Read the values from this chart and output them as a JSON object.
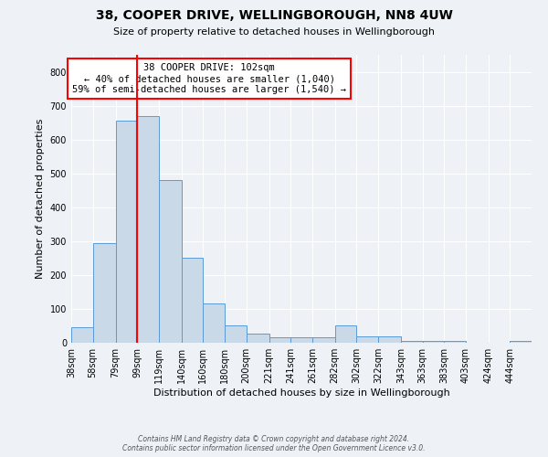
{
  "title": "38, COOPER DRIVE, WELLINGBOROUGH, NN8 4UW",
  "subtitle": "Size of property relative to detached houses in Wellingborough",
  "xlabel": "Distribution of detached houses by size in Wellingborough",
  "ylabel": "Number of detached properties",
  "bin_labels": [
    "38sqm",
    "58sqm",
    "79sqm",
    "99sqm",
    "119sqm",
    "140sqm",
    "160sqm",
    "180sqm",
    "200sqm",
    "221sqm",
    "241sqm",
    "261sqm",
    "282sqm",
    "302sqm",
    "322sqm",
    "343sqm",
    "363sqm",
    "383sqm",
    "403sqm",
    "424sqm",
    "444sqm"
  ],
  "bar_heights": [
    45,
    295,
    655,
    670,
    480,
    250,
    115,
    50,
    28,
    15,
    15,
    15,
    50,
    20,
    20,
    5,
    5,
    5,
    0,
    0,
    5
  ],
  "bar_color": "#c9d9e8",
  "bar_edge_color": "#5b9bd5",
  "vline_x_index": 3,
  "vline_color": "red",
  "ylim": [
    0,
    850
  ],
  "yticks": [
    0,
    100,
    200,
    300,
    400,
    500,
    600,
    700,
    800
  ],
  "annotation_title": "38 COOPER DRIVE: 102sqm",
  "annotation_line1": "← 40% of detached houses are smaller (1,040)",
  "annotation_line2": "59% of semi-detached houses are larger (1,540) →",
  "annotation_box_color": "#ffffff",
  "annotation_box_edge": "red",
  "footer1": "Contains HM Land Registry data © Crown copyright and database right 2024.",
  "footer2": "Contains public sector information licensed under the Open Government Licence v3.0.",
  "bin_edges": [
    38,
    58,
    79,
    99,
    119,
    140,
    160,
    180,
    200,
    221,
    241,
    261,
    282,
    302,
    322,
    343,
    363,
    383,
    403,
    424,
    444,
    464
  ],
  "background_color": "#eef2f7",
  "grid_color": "#ffffff",
  "title_fontsize": 10,
  "subtitle_fontsize": 8,
  "axis_label_fontsize": 8,
  "tick_fontsize": 7,
  "annotation_fontsize": 7.5,
  "footer_fontsize": 5.5
}
